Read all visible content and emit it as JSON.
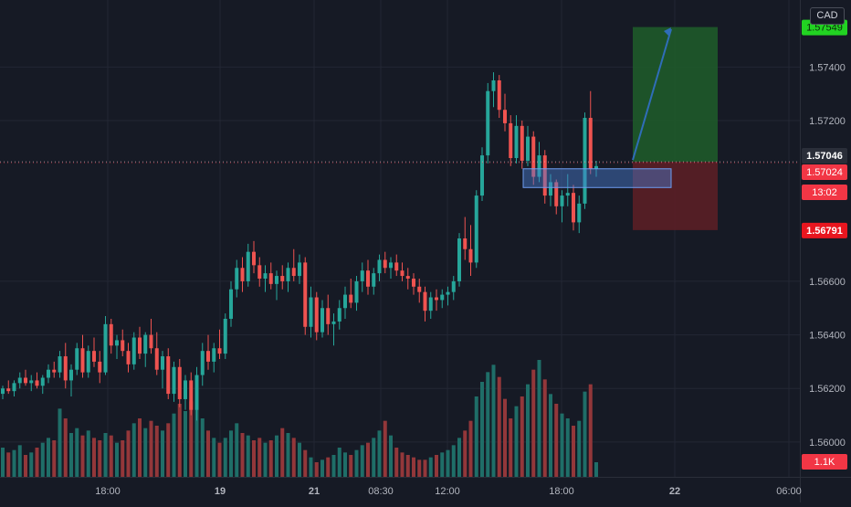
{
  "currency_badge": "CAD",
  "colors": {
    "background": "#161a25",
    "grid": "#232734",
    "up": "#26a69a",
    "down": "#ef5350",
    "vol_up": "#1f6e68",
    "vol_down": "#93373a",
    "target_zone": "#1e5a2a",
    "stop_zone": "#5a1f26",
    "entry_box": "#4a7fd4",
    "target_label": "#22d322",
    "stop_label": "#e8161f",
    "current_label": "#f23645",
    "last_label": "#2a2e39"
  },
  "chart_data": {
    "type": "candlestick",
    "x_ticks": [
      "18:00",
      "19",
      "21",
      "08:30",
      "12:00",
      "18:00",
      "22",
      "06:00"
    ],
    "y_ticks": [
      "1.56000",
      "1.56200",
      "1.56400",
      "1.56600",
      "1.57200",
      "1.57400"
    ],
    "ylim": [
      1.5587,
      1.5765
    ],
    "price_labels": {
      "target": "1.57549",
      "last": "1.57046",
      "current": "1.57024",
      "countdown": "13:02",
      "stop": "1.56791",
      "volume": "1.1K"
    },
    "levels": {
      "target": 1.57549,
      "entry": 1.57046,
      "stop": 1.56791
    },
    "candles": [
      [
        1.5618,
        1.5621,
        1.5616,
        1.562,
        1.2
      ],
      [
        1.562,
        1.5623,
        1.5618,
        1.5619,
        1.0
      ],
      [
        1.5619,
        1.5623,
        1.5617,
        1.5622,
        1.1
      ],
      [
        1.5622,
        1.5626,
        1.562,
        1.5624,
        1.3
      ],
      [
        1.5624,
        1.5627,
        1.5621,
        1.5622,
        0.9
      ],
      [
        1.5622,
        1.5625,
        1.5619,
        1.5623,
        1.0
      ],
      [
        1.5623,
        1.5626,
        1.562,
        1.5621,
        1.2
      ],
      [
        1.5621,
        1.5625,
        1.5618,
        1.5624,
        1.4
      ],
      [
        1.5624,
        1.5629,
        1.5622,
        1.5627,
        1.6
      ],
      [
        1.5627,
        1.563,
        1.5624,
        1.5626,
        1.5
      ],
      [
        1.5626,
        1.5634,
        1.5624,
        1.5632,
        2.8
      ],
      [
        1.5632,
        1.5637,
        1.562,
        1.5623,
        2.4
      ],
      [
        1.5623,
        1.5629,
        1.5617,
        1.5627,
        1.8
      ],
      [
        1.5627,
        1.5637,
        1.5625,
        1.5635,
        2.0
      ],
      [
        1.5635,
        1.564,
        1.5624,
        1.5626,
        1.7
      ],
      [
        1.5626,
        1.5636,
        1.5624,
        1.5634,
        1.9
      ],
      [
        1.5634,
        1.5639,
        1.5628,
        1.563,
        1.6
      ],
      [
        1.563,
        1.5634,
        1.5622,
        1.5626,
        1.5
      ],
      [
        1.5626,
        1.5647,
        1.5625,
        1.5644,
        1.8
      ],
      [
        1.5644,
        1.5646,
        1.5633,
        1.5636,
        1.7
      ],
      [
        1.5636,
        1.564,
        1.5631,
        1.5638,
        1.4
      ],
      [
        1.5638,
        1.5642,
        1.5632,
        1.5634,
        1.5
      ],
      [
        1.5634,
        1.5637,
        1.5626,
        1.5629,
        1.9
      ],
      [
        1.5629,
        1.5641,
        1.5627,
        1.5639,
        2.2
      ],
      [
        1.5639,
        1.5643,
        1.5631,
        1.5633,
        2.4
      ],
      [
        1.5633,
        1.5641,
        1.5628,
        1.564,
        2.0
      ],
      [
        1.564,
        1.5646,
        1.5633,
        1.5635,
        2.3
      ],
      [
        1.5635,
        1.5641,
        1.5625,
        1.5627,
        2.1
      ],
      [
        1.5627,
        1.5634,
        1.562,
        1.5632,
        1.9
      ],
      [
        1.5632,
        1.5635,
        1.5616,
        1.5618,
        2.2
      ],
      [
        1.5618,
        1.563,
        1.5615,
        1.5628,
        2.6
      ],
      [
        1.5628,
        1.5631,
        1.5613,
        1.5616,
        3.0
      ],
      [
        1.5616,
        1.5625,
        1.5612,
        1.5623,
        2.7
      ],
      [
        1.5623,
        1.5626,
        1.561,
        1.5612,
        3.1
      ],
      [
        1.5612,
        1.5628,
        1.5608,
        1.5625,
        2.9
      ],
      [
        1.5625,
        1.5637,
        1.5621,
        1.5634,
        2.4
      ],
      [
        1.5634,
        1.564,
        1.5627,
        1.563,
        1.9
      ],
      [
        1.563,
        1.5637,
        1.5626,
        1.5635,
        1.6
      ],
      [
        1.5635,
        1.5642,
        1.5631,
        1.5633,
        1.4
      ],
      [
        1.5633,
        1.5648,
        1.5631,
        1.5646,
        1.6
      ],
      [
        1.5646,
        1.566,
        1.5643,
        1.5657,
        1.9
      ],
      [
        1.5657,
        1.5668,
        1.5654,
        1.5665,
        2.2
      ],
      [
        1.5665,
        1.5669,
        1.5656,
        1.566,
        1.8
      ],
      [
        1.566,
        1.5674,
        1.5658,
        1.5671,
        1.7
      ],
      [
        1.5671,
        1.5675,
        1.5663,
        1.5666,
        1.5
      ],
      [
        1.5666,
        1.5669,
        1.5658,
        1.5661,
        1.6
      ],
      [
        1.5661,
        1.5666,
        1.5656,
        1.5663,
        1.4
      ],
      [
        1.5663,
        1.5667,
        1.5657,
        1.5659,
        1.5
      ],
      [
        1.5659,
        1.5664,
        1.5653,
        1.5662,
        1.7
      ],
      [
        1.5662,
        1.5666,
        1.5657,
        1.566,
        2.0
      ],
      [
        1.566,
        1.5667,
        1.5656,
        1.5665,
        1.8
      ],
      [
        1.5665,
        1.5672,
        1.566,
        1.5662,
        1.6
      ],
      [
        1.5662,
        1.567,
        1.5659,
        1.5667,
        1.4
      ],
      [
        1.5667,
        1.5669,
        1.564,
        1.5643,
        1.1
      ],
      [
        1.5643,
        1.5658,
        1.5639,
        1.5654,
        0.8
      ],
      [
        1.5654,
        1.5656,
        1.5638,
        1.5641,
        0.6
      ],
      [
        1.5641,
        1.5653,
        1.5639,
        1.565,
        0.7
      ],
      [
        1.565,
        1.5655,
        1.564,
        1.5644,
        0.8
      ],
      [
        1.5644,
        1.5648,
        1.5636,
        1.5645,
        0.9
      ],
      [
        1.5645,
        1.5653,
        1.5642,
        1.565,
        1.2
      ],
      [
        1.565,
        1.5658,
        1.5646,
        1.5655,
        1.0
      ],
      [
        1.5655,
        1.5661,
        1.565,
        1.5652,
        0.9
      ],
      [
        1.5652,
        1.5662,
        1.5649,
        1.566,
        1.1
      ],
      [
        1.566,
        1.5667,
        1.5656,
        1.5664,
        1.3
      ],
      [
        1.5664,
        1.5668,
        1.5655,
        1.5658,
        1.4
      ],
      [
        1.5658,
        1.5665,
        1.5655,
        1.5663,
        1.6
      ],
      [
        1.5663,
        1.567,
        1.566,
        1.5668,
        1.9
      ],
      [
        1.5668,
        1.5671,
        1.5663,
        1.5665,
        2.3
      ],
      [
        1.5665,
        1.5669,
        1.5661,
        1.5667,
        1.7
      ],
      [
        1.5667,
        1.567,
        1.5662,
        1.5664,
        1.2
      ],
      [
        1.5664,
        1.5667,
        1.566,
        1.5662,
        1.0
      ],
      [
        1.5662,
        1.5665,
        1.5657,
        1.5661,
        0.9
      ],
      [
        1.5661,
        1.5663,
        1.5655,
        1.5658,
        0.8
      ],
      [
        1.5658,
        1.5661,
        1.5652,
        1.5656,
        0.7
      ],
      [
        1.5656,
        1.5658,
        1.5645,
        1.5649,
        0.7
      ],
      [
        1.5649,
        1.5656,
        1.5646,
        1.5654,
        0.8
      ],
      [
        1.5654,
        1.5657,
        1.5649,
        1.5653,
        0.9
      ],
      [
        1.5653,
        1.5657,
        1.565,
        1.5655,
        1.0
      ],
      [
        1.5655,
        1.5658,
        1.5651,
        1.5656,
        1.1
      ],
      [
        1.5656,
        1.5662,
        1.5653,
        1.566,
        1.3
      ],
      [
        1.566,
        1.5678,
        1.5658,
        1.5676,
        1.6
      ],
      [
        1.5676,
        1.5684,
        1.5668,
        1.5672,
        1.9
      ],
      [
        1.5672,
        1.5681,
        1.5662,
        1.5667,
        2.3
      ],
      [
        1.5667,
        1.5694,
        1.5665,
        1.5692,
        3.3
      ],
      [
        1.5692,
        1.571,
        1.569,
        1.5707,
        3.9
      ],
      [
        1.5707,
        1.5734,
        1.5704,
        1.5731,
        4.3
      ],
      [
        1.5731,
        1.5738,
        1.5725,
        1.5735,
        4.6
      ],
      [
        1.5735,
        1.5737,
        1.5721,
        1.5724,
        4.1
      ],
      [
        1.5724,
        1.573,
        1.5716,
        1.5719,
        3.2
      ],
      [
        1.5719,
        1.5722,
        1.5703,
        1.5706,
        2.4
      ],
      [
        1.5706,
        1.5722,
        1.5704,
        1.5718,
        2.9
      ],
      [
        1.5718,
        1.572,
        1.5702,
        1.5705,
        3.3
      ],
      [
        1.5705,
        1.5718,
        1.5703,
        1.5714,
        3.8
      ],
      [
        1.5714,
        1.5716,
        1.5696,
        1.5699,
        4.4
      ],
      [
        1.5699,
        1.5712,
        1.5697,
        1.5707,
        4.8
      ],
      [
        1.5707,
        1.5709,
        1.5689,
        1.5692,
        4.0
      ],
      [
        1.5692,
        1.57,
        1.5688,
        1.5697,
        3.4
      ],
      [
        1.5697,
        1.5698,
        1.5685,
        1.5688,
        3.0
      ],
      [
        1.5688,
        1.5694,
        1.5682,
        1.5692,
        2.6
      ],
      [
        1.5692,
        1.57,
        1.5688,
        1.5693,
        2.4
      ],
      [
        1.5693,
        1.5696,
        1.5679,
        1.5682,
        2.1
      ],
      [
        1.5682,
        1.5692,
        1.5678,
        1.5689,
        2.3
      ],
      [
        1.5689,
        1.5723,
        1.5687,
        1.5721,
        3.5
      ],
      [
        1.5721,
        1.5731,
        1.57,
        1.5702,
        3.8
      ],
      [
        1.5702,
        1.5705,
        1.5699,
        1.5703,
        0.6
      ]
    ]
  }
}
